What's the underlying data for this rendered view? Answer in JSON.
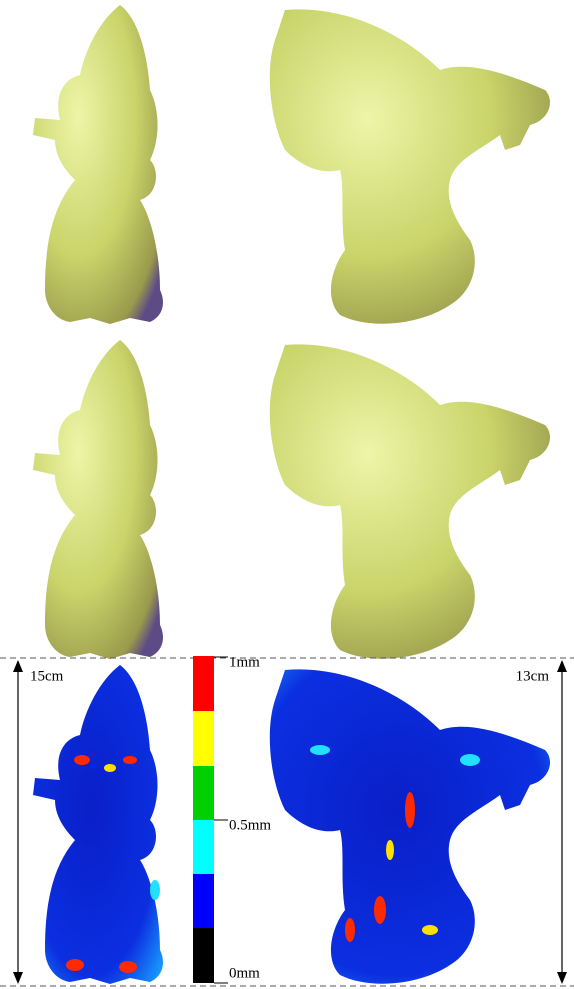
{
  "figure": {
    "scale_bars": [
      {
        "label": "15cm"
      },
      {
        "label": "13cm"
      }
    ],
    "colorbar": {
      "labels": [
        "1mm",
        "0.5mm",
        "0mm"
      ]
    }
  }
}
